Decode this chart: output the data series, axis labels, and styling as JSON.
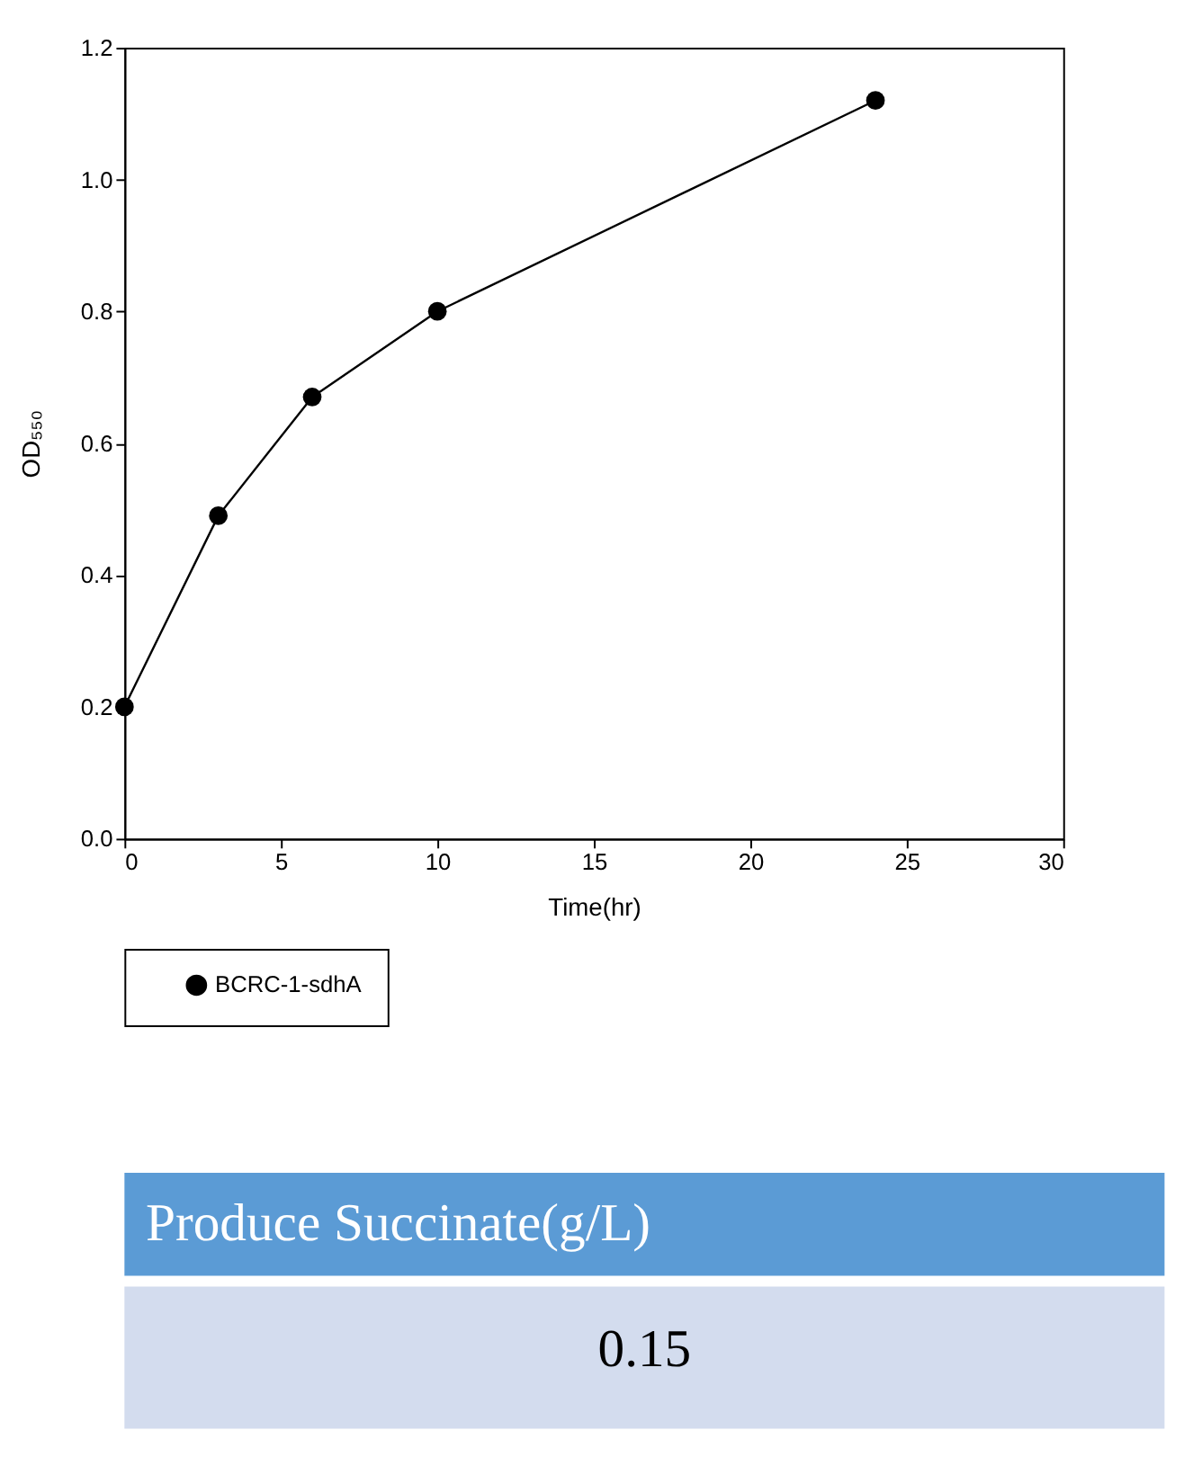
{
  "chart_data": {
    "type": "line",
    "xlabel": "Time(hr)",
    "ylabel": "OD₅₅₀",
    "x": [
      0,
      3,
      6,
      10,
      24
    ],
    "series": [
      {
        "name": "BCRC-1-sdhA",
        "color": "#000000",
        "values": [
          0.2,
          0.49,
          0.67,
          0.8,
          1.12
        ]
      }
    ],
    "xlim": [
      0,
      30
    ],
    "xticks": [
      0,
      5,
      10,
      15,
      20,
      25,
      30
    ],
    "ylim": [
      0,
      1.2
    ],
    "yticks": [
      {
        "value": 0,
        "label": "0.0"
      },
      {
        "value": 0.2,
        "label": "0.2"
      },
      {
        "value": 0.4,
        "label": "0.4"
      },
      {
        "value": 0.6,
        "label": "0.6"
      },
      {
        "value": 0.8,
        "label": "0.8"
      },
      {
        "value": 1.0,
        "label": "1.0"
      },
      {
        "value": 1.2,
        "label": "1.2"
      }
    ],
    "grid": false,
    "legend": "bottom left",
    "marker": "circle",
    "line_style": "solid",
    "annotations": [
      "Produce Succinate(g/L)",
      "0.15"
    ]
  }
}
